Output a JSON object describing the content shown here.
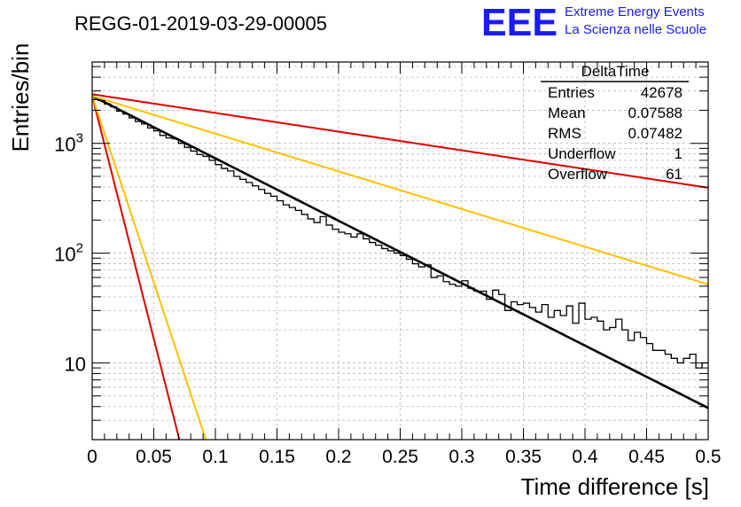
{
  "chart_data": {
    "type": "histogram",
    "title": "REGG-01-2019-03-29-00005",
    "xlabel": "Time difference [s]",
    "ylabel": "Entries/bin",
    "xlim": [
      0,
      0.5
    ],
    "ylim": [
      2,
      5500
    ],
    "yscale": "log",
    "grid": true,
    "x_ticks": [
      {
        "value": 0,
        "label": "0"
      },
      {
        "value": 0.05,
        "label": "0.05"
      },
      {
        "value": 0.1,
        "label": "0.1"
      },
      {
        "value": 0.15,
        "label": "0.15"
      },
      {
        "value": 0.2,
        "label": "0.2"
      },
      {
        "value": 0.25,
        "label": "0.25"
      },
      {
        "value": 0.3,
        "label": "0.3"
      },
      {
        "value": 0.35,
        "label": "0.35"
      },
      {
        "value": 0.4,
        "label": "0.4"
      },
      {
        "value": 0.45,
        "label": "0.45"
      },
      {
        "value": 0.5,
        "label": "0.5"
      }
    ],
    "y_ticks": [
      {
        "value": 10,
        "base": "10",
        "exp": ""
      },
      {
        "value": 100,
        "base": "10",
        "exp": "2"
      },
      {
        "value": 1000,
        "base": "10",
        "exp": "3"
      }
    ],
    "bin_width": 0.005,
    "histogram_counts": [
      2500,
      2450,
      2280,
      2150,
      1960,
      1850,
      1700,
      1580,
      1500,
      1380,
      1300,
      1180,
      1120,
      1100,
      1000,
      920,
      850,
      790,
      760,
      700,
      640,
      590,
      560,
      500,
      470,
      440,
      410,
      380,
      350,
      330,
      300,
      275,
      260,
      245,
      225,
      205,
      190,
      215,
      180,
      165,
      155,
      150,
      140,
      150,
      135,
      125,
      118,
      110,
      105,
      100,
      95,
      88,
      80,
      75,
      78,
      60,
      62,
      55,
      52,
      50,
      56,
      48,
      45,
      45,
      38,
      46,
      42,
      30,
      36,
      34,
      35,
      32,
      29,
      34,
      26,
      30,
      27,
      33,
      23,
      35,
      25,
      26,
      24,
      20,
      21,
      25,
      20,
      16,
      19,
      17,
      15,
      13,
      13,
      12,
      11,
      10,
      11,
      12,
      9,
      10
    ],
    "fits": [
      {
        "name": "fit",
        "color": "#000000",
        "a": 2700,
        "tau": 0.0764
      },
      {
        "name": "upper-red",
        "color": "#dd0000",
        "a": 2800,
        "tau": 0.255
      },
      {
        "name": "upper-yellow",
        "color": "#ffc000",
        "a": 2700,
        "tau": 0.1265
      },
      {
        "name": "lower-red",
        "color": "#dd0000",
        "a": 2700,
        "tau": 0.00982
      },
      {
        "name": "lower-yellow",
        "color": "#ffc000",
        "a": 2700,
        "tau": 0.0128
      }
    ],
    "stats_box": {
      "title": "DeltaTime",
      "rows": [
        {
          "label": "Entries",
          "value": "42678"
        },
        {
          "label": "Mean",
          "value": "0.07588"
        },
        {
          "label": "RMS",
          "value": "0.07482"
        },
        {
          "label": "Underflow",
          "value": "1"
        },
        {
          "label": "Overflow",
          "value": "61"
        }
      ]
    },
    "logo": {
      "text": "EEE",
      "line1": "Extreme Energy Events",
      "line2": "La Scienza nelle Scuole",
      "color": "#1a1aff"
    }
  }
}
